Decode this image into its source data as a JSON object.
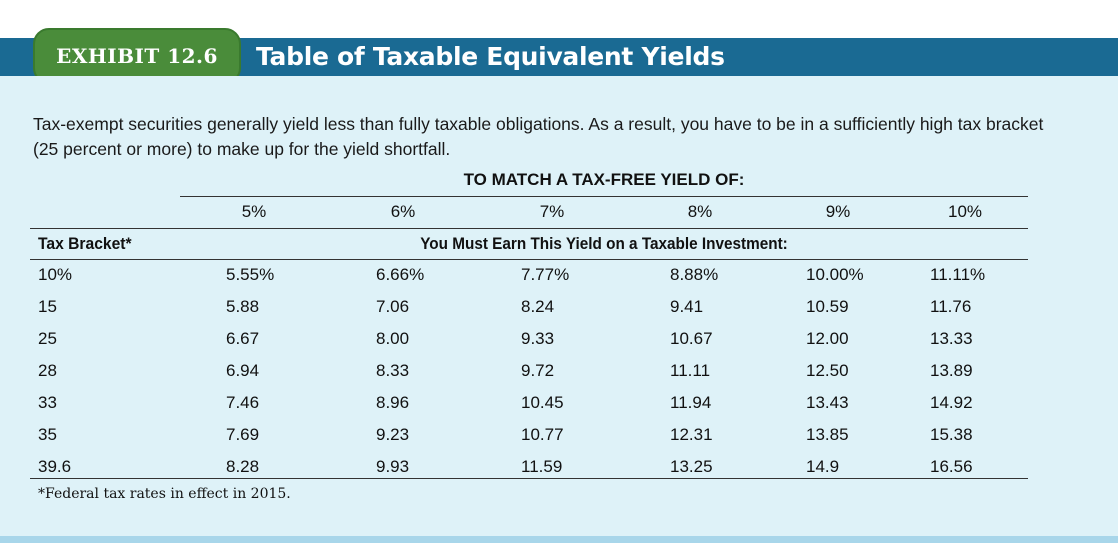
{
  "exhibit_label": "EXHIBIT 12.6",
  "title": "Table of Taxable Equivalent Yields",
  "intro": "Tax-exempt securities generally yield less than fully taxable obligations. As a result, you have to be in a sufficiently high tax bracket (25 percent or more) to make up for the yield shortfall.",
  "span_heading": "TO MATCH A TAX-FREE YIELD OF:",
  "yield_columns": [
    "5%",
    "6%",
    "7%",
    "8%",
    "9%",
    "10%"
  ],
  "row_header": "Tax Bracket*",
  "subheading": "You Must Earn This Yield on a Taxable Investment:",
  "rows": [
    [
      "10%",
      "5.55%",
      "6.66%",
      "7.77%",
      "8.88%",
      "10.00%",
      "11.11%"
    ],
    [
      "15",
      "5.88",
      "7.06",
      "8.24",
      "9.41",
      "10.59",
      "11.76"
    ],
    [
      "25",
      "6.67",
      "8.00",
      "9.33",
      "10.67",
      "12.00",
      "13.33"
    ],
    [
      "28",
      "6.94",
      "8.33",
      "9.72",
      "11.11",
      "12.50",
      "13.89"
    ],
    [
      "33",
      "7.46",
      "8.96",
      "10.45",
      "11.94",
      "13.43",
      "14.92"
    ],
    [
      "35",
      "7.69",
      "9.23",
      "10.77",
      "12.31",
      "13.85",
      "15.38"
    ],
    [
      "39.6",
      "8.28",
      "9.93",
      "11.59",
      "13.25",
      "14.9",
      "16.56"
    ]
  ],
  "footnote": "*Federal tax rates in effect in 2015.",
  "colors": {
    "header_bar": "#1a6a93",
    "exhibit_tab": "#4a8c3a",
    "panel": "#def2f8"
  }
}
